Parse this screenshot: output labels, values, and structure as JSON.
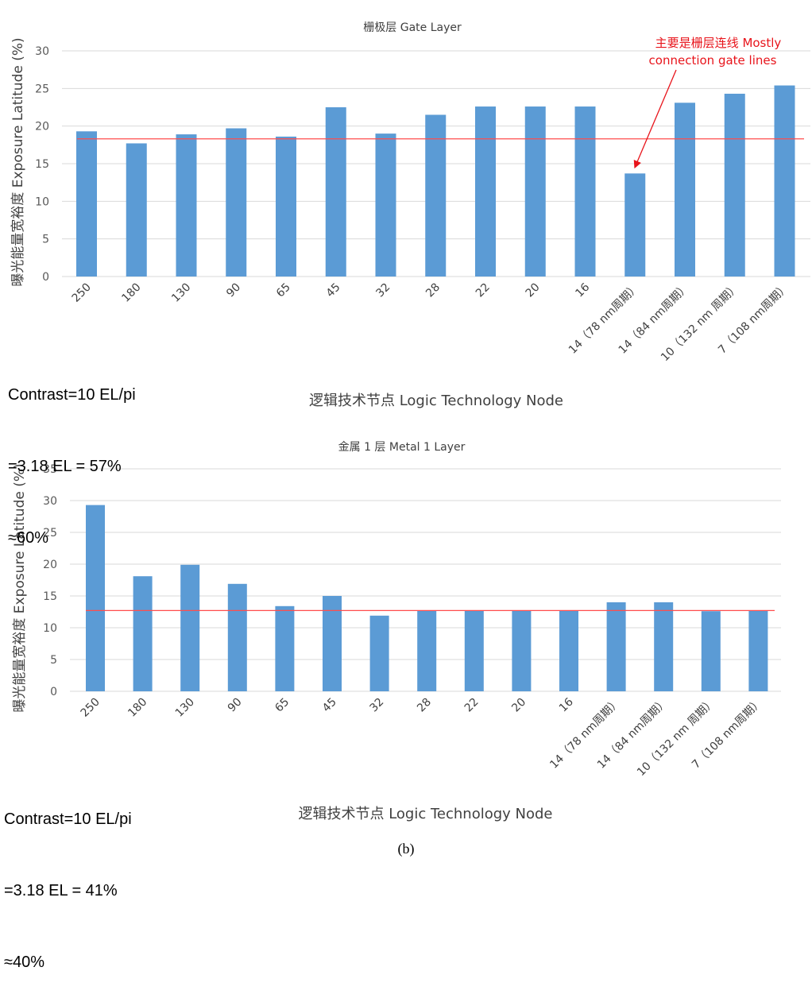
{
  "chart_data": [
    {
      "type": "bar",
      "title": "栅极层 Gate Layer",
      "xlabel": "逻辑技术节点 Logic Technology Node",
      "ylabel": "曝光能量宽裕度 Exposure Latitude (%)",
      "categories": [
        "250",
        "180",
        "130",
        "90",
        "65",
        "45",
        "32",
        "28",
        "22",
        "20",
        "16",
        "14（78 nm周期）",
        "14（84 nm周期）",
        "10（132 nm 周期）",
        "7（108 nm周期）"
      ],
      "values": [
        19.3,
        17.7,
        18.9,
        19.7,
        18.6,
        22.5,
        19.0,
        21.5,
        22.6,
        22.6,
        22.6,
        13.7,
        23.1,
        24.3,
        25.4
      ],
      "ylim": [
        0,
        30
      ],
      "yticks": [
        0,
        5,
        10,
        15,
        20,
        25,
        30
      ],
      "reference_line": 18.3,
      "grid": true,
      "bar_color": "#5b9bd5",
      "reference_color": "#ff4d4d",
      "annotation": {
        "lines": [
          "主要是栅层连线 Mostly",
          "connection gate lines"
        ],
        "target_category": "14（78 nm周期）",
        "color": "#e8141b"
      },
      "note": [
        "Contrast=10 EL/pi",
        "=3.18 EL = 57%",
        "≈60%"
      ]
    },
    {
      "type": "bar",
      "title": "金属 1 层 Metal 1 Layer",
      "xlabel": "逻辑技术节点 Logic Technology Node",
      "ylabel": "曝光能量宽裕度 Exposure Latitude (%)",
      "categories": [
        "250",
        "180",
        "130",
        "90",
        "65",
        "45",
        "32",
        "28",
        "22",
        "20",
        "16",
        "14（78 nm周期）",
        "14（84 nm周期）",
        "10（132 nm 周期）",
        "7（108 nm周期）"
      ],
      "values": [
        29.3,
        18.1,
        19.9,
        16.9,
        13.4,
        15.0,
        11.9,
        12.7,
        12.7,
        12.7,
        12.7,
        14.0,
        14.0,
        12.6,
        12.7
      ],
      "ylim": [
        0,
        35
      ],
      "yticks": [
        0,
        5,
        10,
        15,
        20,
        25,
        30,
        35
      ],
      "reference_line": 12.7,
      "grid": true,
      "bar_color": "#5b9bd5",
      "reference_color": "#ff4d4d",
      "note": [
        "Contrast=10 EL/pi",
        "=3.18 EL = 41%",
        "≈40%"
      ]
    }
  ],
  "caption": "(b)"
}
